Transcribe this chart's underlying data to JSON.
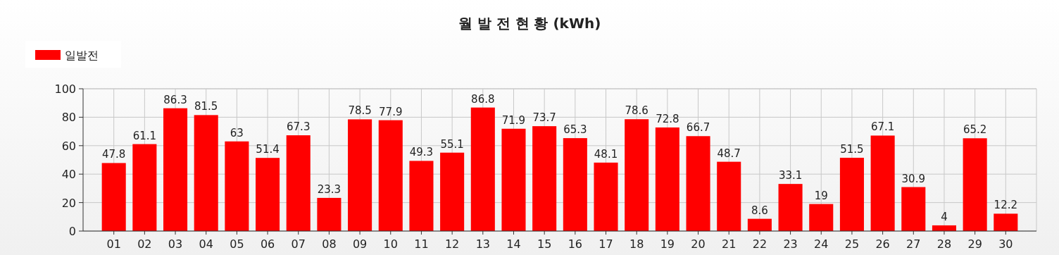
{
  "chart_data": {
    "type": "bar",
    "title": "월 발 전 현 황 (kWh)",
    "categories": [
      "01",
      "02",
      "03",
      "04",
      "05",
      "06",
      "07",
      "08",
      "09",
      "10",
      "11",
      "12",
      "13",
      "14",
      "15",
      "16",
      "17",
      "18",
      "19",
      "20",
      "21",
      "22",
      "23",
      "24",
      "25",
      "26",
      "27",
      "28",
      "29",
      "30"
    ],
    "series": [
      {
        "name": "일발전",
        "color": "#ff0000",
        "values": [
          47.8,
          61.1,
          86.3,
          81.5,
          63,
          51.4,
          67.3,
          23.3,
          78.5,
          77.9,
          49.3,
          55.1,
          86.8,
          71.9,
          73.7,
          65.3,
          48.1,
          78.6,
          72.8,
          66.7,
          48.7,
          8.6,
          33.1,
          19,
          51.5,
          67.1,
          30.9,
          4,
          65.2,
          12.2
        ]
      }
    ],
    "ylim": [
      0,
      100
    ],
    "yticks": [
      0,
      20,
      40,
      60,
      80,
      100
    ],
    "grid": true,
    "legend": "top left",
    "data_labels": true
  }
}
